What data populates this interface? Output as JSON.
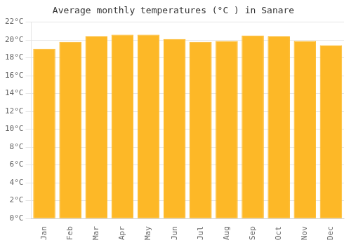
{
  "chart_data": {
    "type": "bar",
    "title": "Average monthly temperatures (°C ) in Sanare",
    "categories": [
      "Jan",
      "Feb",
      "Mar",
      "Apr",
      "May",
      "Jun",
      "Jul",
      "Aug",
      "Sep",
      "Oct",
      "Nov",
      "Dec"
    ],
    "values": [
      19.0,
      19.8,
      20.4,
      20.6,
      20.6,
      20.1,
      19.8,
      19.9,
      20.5,
      20.4,
      19.9,
      19.4
    ],
    "color": "#FDB827",
    "ylim": [
      0,
      22
    ],
    "yticks": [
      {
        "value": 0,
        "label": "0°C"
      },
      {
        "value": 2,
        "label": "2°C"
      },
      {
        "value": 4,
        "label": "4°C"
      },
      {
        "value": 6,
        "label": "6°C"
      },
      {
        "value": 8,
        "label": "8°C"
      },
      {
        "value": 10,
        "label": "10°C"
      },
      {
        "value": 12,
        "label": "12°C"
      },
      {
        "value": 14,
        "label": "14°C"
      },
      {
        "value": 16,
        "label": "16°C"
      },
      {
        "value": 18,
        "label": "18°C"
      },
      {
        "value": 20,
        "label": "20°C"
      },
      {
        "value": 22,
        "label": "22°C"
      }
    ],
    "grid": true
  }
}
